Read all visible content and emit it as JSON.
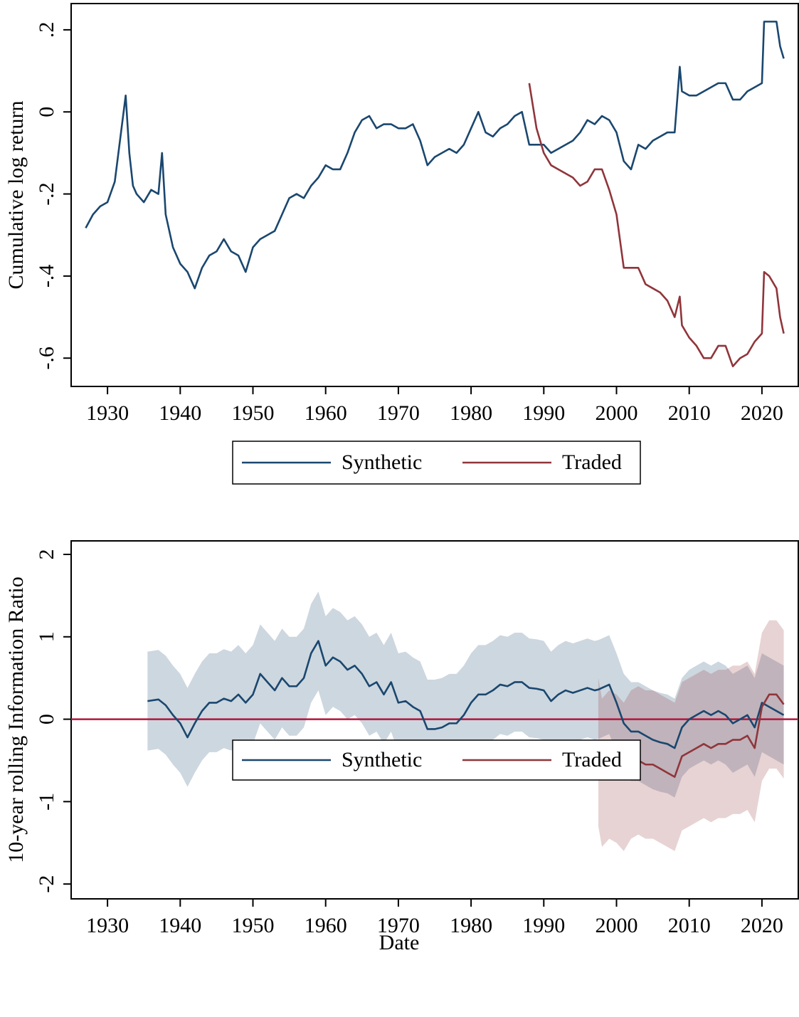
{
  "chart_data": [
    {
      "type": "line",
      "y_label": "Cumulative log return",
      "x": [
        1927,
        1928,
        1929,
        1930,
        1931,
        1932,
        1932.5,
        1933,
        1933.5,
        1934,
        1935,
        1936,
        1937,
        1937.5,
        1938,
        1939,
        1940,
        1941,
        1942,
        1943,
        1944,
        1945,
        1946,
        1947,
        1948,
        1949,
        1950,
        1951,
        1952,
        1953,
        1954,
        1955,
        1956,
        1957,
        1958,
        1959,
        1960,
        1961,
        1962,
        1963,
        1964,
        1965,
        1966,
        1967,
        1968,
        1969,
        1970,
        1971,
        1972,
        1973,
        1974,
        1975,
        1976,
        1977,
        1978,
        1979,
        1980,
        1981,
        1982,
        1983,
        1984,
        1985,
        1986,
        1987,
        1988,
        1989,
        1990,
        1991,
        1992,
        1993,
        1994,
        1995,
        1996,
        1997,
        1998,
        1999,
        2000,
        2001,
        2002,
        2003,
        2004,
        2005,
        2006,
        2007,
        2008,
        2008.7,
        2009,
        2010,
        2011,
        2012,
        2013,
        2014,
        2015,
        2016,
        2017,
        2018,
        2019,
        2020,
        2020.3,
        2021,
        2022,
        2022.5,
        2023
      ],
      "series": [
        {
          "name": "Synthetic",
          "color": "#1a476f",
          "values": [
            -0.283,
            -0.25,
            -0.23,
            -0.22,
            -0.17,
            -0.03,
            0.04,
            -0.1,
            -0.18,
            -0.2,
            -0.22,
            -0.19,
            -0.2,
            -0.1,
            -0.25,
            -0.33,
            -0.37,
            -0.39,
            -0.43,
            -0.38,
            -0.35,
            -0.34,
            -0.31,
            -0.34,
            -0.35,
            -0.39,
            -0.33,
            -0.31,
            -0.3,
            -0.29,
            -0.25,
            -0.21,
            -0.2,
            -0.21,
            -0.18,
            -0.16,
            -0.13,
            -0.14,
            -0.14,
            -0.1,
            -0.05,
            -0.02,
            -0.01,
            -0.04,
            -0.03,
            -0.03,
            -0.04,
            -0.04,
            -0.03,
            -0.07,
            -0.13,
            -0.11,
            -0.1,
            -0.09,
            -0.1,
            -0.08,
            -0.04,
            0.0,
            -0.05,
            -0.06,
            -0.04,
            -0.03,
            -0.01,
            0.0,
            -0.08,
            -0.08,
            -0.08,
            -0.1,
            -0.09,
            -0.08,
            -0.07,
            -0.05,
            -0.02,
            -0.03,
            -0.01,
            -0.02,
            -0.05,
            -0.12,
            -0.14,
            -0.08,
            -0.09,
            -0.07,
            -0.06,
            -0.05,
            -0.05,
            0.11,
            0.05,
            0.04,
            0.04,
            0.05,
            0.06,
            0.07,
            0.07,
            0.03,
            0.03,
            0.05,
            0.06,
            0.07,
            0.22,
            0.22,
            0.22,
            0.16,
            0.13
          ]
        },
        {
          "name": "Traded",
          "color": "#90353b",
          "values": [
            null,
            null,
            null,
            null,
            null,
            null,
            null,
            null,
            null,
            null,
            null,
            null,
            null,
            null,
            null,
            null,
            null,
            null,
            null,
            null,
            null,
            null,
            null,
            null,
            null,
            null,
            null,
            null,
            null,
            null,
            null,
            null,
            null,
            null,
            null,
            null,
            null,
            null,
            null,
            null,
            null,
            null,
            null,
            null,
            null,
            null,
            null,
            null,
            null,
            null,
            null,
            null,
            null,
            null,
            null,
            null,
            null,
            null,
            null,
            null,
            null,
            null,
            null,
            null,
            0.07,
            -0.04,
            -0.1,
            -0.13,
            -0.14,
            -0.15,
            -0.16,
            -0.18,
            -0.17,
            -0.14,
            -0.14,
            -0.19,
            -0.25,
            -0.38,
            -0.38,
            -0.38,
            -0.42,
            -0.43,
            -0.44,
            -0.46,
            -0.5,
            -0.45,
            -0.52,
            -0.55,
            -0.57,
            -0.6,
            -0.6,
            -0.57,
            -0.57,
            -0.62,
            -0.6,
            -0.59,
            -0.56,
            -0.54,
            -0.39,
            -0.4,
            -0.43,
            -0.5,
            -0.54
          ]
        }
      ],
      "xlim": [
        1925,
        2025
      ],
      "xticks": [
        1930,
        1940,
        1950,
        1960,
        1970,
        1980,
        1990,
        2000,
        2010,
        2020
      ],
      "ylim": [
        -0.669,
        0.264
      ],
      "yticks": [
        {
          "value": -0.6,
          "label": "-.6"
        },
        {
          "value": -0.4,
          "label": "-.4"
        },
        {
          "value": -0.2,
          "label": "-.2"
        },
        0,
        {
          "value": 0.2,
          "label": ".2"
        }
      ],
      "legend": "bottom"
    },
    {
      "type": "line",
      "x_label": "Date",
      "y_label": "10-year rolling Information Ratio",
      "x": [
        1935.5,
        1937,
        1938,
        1939,
        1940,
        1941,
        1942,
        1943,
        1944,
        1945,
        1946,
        1947,
        1948,
        1949,
        1950,
        1951,
        1952,
        1953,
        1954,
        1955,
        1956,
        1957,
        1958,
        1959,
        1960,
        1961,
        1962,
        1963,
        1964,
        1965,
        1966,
        1967,
        1968,
        1969,
        1970,
        1971,
        1972,
        1973,
        1974,
        1975,
        1976,
        1977,
        1978,
        1979,
        1980,
        1981,
        1982,
        1983,
        1984,
        1985,
        1986,
        1987,
        1988,
        1989,
        1990,
        1991,
        1992,
        1993,
        1994,
        1995,
        1996,
        1997,
        1997.5,
        1998,
        1999,
        2000,
        2001,
        2002,
        2003,
        2004,
        2005,
        2006,
        2007,
        2008,
        2009,
        2010,
        2011,
        2012,
        2013,
        2014,
        2015,
        2016,
        2017,
        2018,
        2019,
        2020,
        2021,
        2022,
        2023
      ],
      "series": [
        {
          "name": "Synthetic",
          "color": "#1a476f",
          "values": [
            0.22,
            0.24,
            0.17,
            0.05,
            -0.05,
            -0.22,
            -0.05,
            0.1,
            0.2,
            0.2,
            0.25,
            0.22,
            0.3,
            0.2,
            0.3,
            0.55,
            0.45,
            0.35,
            0.5,
            0.4,
            0.4,
            0.5,
            0.8,
            0.95,
            0.65,
            0.75,
            0.7,
            0.6,
            0.65,
            0.55,
            0.4,
            0.45,
            0.3,
            0.45,
            0.2,
            0.22,
            0.15,
            0.1,
            -0.12,
            -0.12,
            -0.1,
            -0.05,
            -0.05,
            0.05,
            0.2,
            0.3,
            0.3,
            0.35,
            0.42,
            0.4,
            0.45,
            0.45,
            0.38,
            0.37,
            0.35,
            0.22,
            0.3,
            0.35,
            0.32,
            0.35,
            0.38,
            0.35,
            0.36,
            0.38,
            0.42,
            0.2,
            -0.05,
            -0.15,
            -0.15,
            -0.2,
            -0.25,
            -0.28,
            -0.3,
            -0.35,
            -0.1,
            0.0,
            0.05,
            0.1,
            0.05,
            0.1,
            0.05,
            -0.05,
            0.0,
            0.05,
            -0.1,
            0.2,
            0.15,
            0.1,
            0.05
          ],
          "upper": [
            0.82,
            0.84,
            0.77,
            0.65,
            0.55,
            0.38,
            0.55,
            0.7,
            0.8,
            0.8,
            0.85,
            0.82,
            0.9,
            0.8,
            0.9,
            1.15,
            1.05,
            0.95,
            1.1,
            1.0,
            1.0,
            1.1,
            1.4,
            1.55,
            1.25,
            1.35,
            1.3,
            1.2,
            1.25,
            1.15,
            1.0,
            1.05,
            0.9,
            1.05,
            0.8,
            0.82,
            0.75,
            0.7,
            0.48,
            0.48,
            0.5,
            0.55,
            0.55,
            0.65,
            0.8,
            0.9,
            0.9,
            0.95,
            1.02,
            1.0,
            1.05,
            1.05,
            0.98,
            0.97,
            0.95,
            0.82,
            0.9,
            0.95,
            0.92,
            0.95,
            0.98,
            0.95,
            0.96,
            0.98,
            1.02,
            0.8,
            0.55,
            0.45,
            0.45,
            0.4,
            0.35,
            0.32,
            0.3,
            0.25,
            0.5,
            0.6,
            0.65,
            0.7,
            0.65,
            0.7,
            0.65,
            0.55,
            0.6,
            0.65,
            0.5,
            0.8,
            0.75,
            0.7,
            0.65
          ],
          "lower": [
            -0.38,
            -0.36,
            -0.43,
            -0.55,
            -0.65,
            -0.82,
            -0.65,
            -0.5,
            -0.4,
            -0.4,
            -0.35,
            -0.38,
            -0.3,
            -0.4,
            -0.3,
            -0.05,
            -0.15,
            -0.25,
            -0.1,
            -0.2,
            -0.2,
            -0.1,
            0.2,
            0.35,
            0.05,
            0.15,
            0.1,
            0.0,
            0.05,
            -0.05,
            -0.2,
            -0.15,
            -0.3,
            -0.15,
            -0.4,
            -0.38,
            -0.45,
            -0.5,
            -0.72,
            -0.72,
            -0.7,
            -0.65,
            -0.65,
            -0.55,
            -0.4,
            -0.3,
            -0.3,
            -0.25,
            -0.18,
            -0.2,
            -0.15,
            -0.15,
            -0.22,
            -0.23,
            -0.25,
            -0.38,
            -0.3,
            -0.25,
            -0.28,
            -0.25,
            -0.22,
            -0.25,
            -0.24,
            -0.22,
            -0.18,
            -0.4,
            -0.65,
            -0.75,
            -0.75,
            -0.8,
            -0.85,
            -0.88,
            -0.9,
            -0.95,
            -0.7,
            -0.6,
            -0.55,
            -0.5,
            -0.55,
            -0.5,
            -0.55,
            -0.65,
            -0.6,
            -0.55,
            -0.7,
            -0.4,
            -0.45,
            -0.5,
            -0.55
          ]
        },
        {
          "name": "Traded",
          "color": "#90353b",
          "values": [
            null,
            null,
            null,
            null,
            null,
            null,
            null,
            null,
            null,
            null,
            null,
            null,
            null,
            null,
            null,
            null,
            null,
            null,
            null,
            null,
            null,
            null,
            null,
            null,
            null,
            null,
            null,
            null,
            null,
            null,
            null,
            null,
            null,
            null,
            null,
            null,
            null,
            null,
            null,
            null,
            null,
            null,
            null,
            null,
            null,
            null,
            null,
            null,
            null,
            null,
            null,
            null,
            null,
            null,
            null,
            null,
            null,
            null,
            null,
            null,
            null,
            null,
            -0.4,
            -0.65,
            -0.55,
            -0.6,
            -0.7,
            -0.55,
            -0.5,
            -0.55,
            -0.55,
            -0.6,
            -0.65,
            -0.7,
            -0.45,
            -0.4,
            -0.35,
            -0.3,
            -0.35,
            -0.3,
            -0.3,
            -0.25,
            -0.25,
            -0.2,
            -0.35,
            0.15,
            0.3,
            0.3,
            0.18
          ],
          "upper": [
            null,
            null,
            null,
            null,
            null,
            null,
            null,
            null,
            null,
            null,
            null,
            null,
            null,
            null,
            null,
            null,
            null,
            null,
            null,
            null,
            null,
            null,
            null,
            null,
            null,
            null,
            null,
            null,
            null,
            null,
            null,
            null,
            null,
            null,
            null,
            null,
            null,
            null,
            null,
            null,
            null,
            null,
            null,
            null,
            null,
            null,
            null,
            null,
            null,
            null,
            null,
            null,
            null,
            null,
            null,
            null,
            null,
            null,
            null,
            null,
            null,
            null,
            0.5,
            0.25,
            0.35,
            0.3,
            0.2,
            0.35,
            0.4,
            0.35,
            0.35,
            0.3,
            0.25,
            0.2,
            0.45,
            0.5,
            0.55,
            0.6,
            0.55,
            0.6,
            0.6,
            0.65,
            0.65,
            0.7,
            0.55,
            1.05,
            1.2,
            1.2,
            1.08
          ],
          "lower": [
            null,
            null,
            null,
            null,
            null,
            null,
            null,
            null,
            null,
            null,
            null,
            null,
            null,
            null,
            null,
            null,
            null,
            null,
            null,
            null,
            null,
            null,
            null,
            null,
            null,
            null,
            null,
            null,
            null,
            null,
            null,
            null,
            null,
            null,
            null,
            null,
            null,
            null,
            null,
            null,
            null,
            null,
            null,
            null,
            null,
            null,
            null,
            null,
            null,
            null,
            null,
            null,
            null,
            null,
            null,
            null,
            null,
            null,
            null,
            null,
            null,
            null,
            -1.3,
            -1.55,
            -1.45,
            -1.5,
            -1.6,
            -1.45,
            -1.4,
            -1.45,
            -1.45,
            -1.5,
            -1.55,
            -1.6,
            -1.35,
            -1.3,
            -1.25,
            -1.2,
            -1.25,
            -1.2,
            -1.2,
            -1.15,
            -1.15,
            -1.1,
            -1.25,
            -0.75,
            -0.6,
            -0.6,
            -0.72
          ]
        }
      ],
      "reference_line": {
        "value": 0,
        "color": "#b2163c"
      },
      "xlim": [
        1925,
        2025
      ],
      "xticks": [
        1930,
        1940,
        1950,
        1960,
        1970,
        1980,
        1990,
        2000,
        2010,
        2020
      ],
      "ylim": [
        -2.18,
        2.164
      ],
      "yticks": [
        -2,
        -1,
        0,
        1,
        2
      ],
      "legend": "bottom"
    }
  ]
}
